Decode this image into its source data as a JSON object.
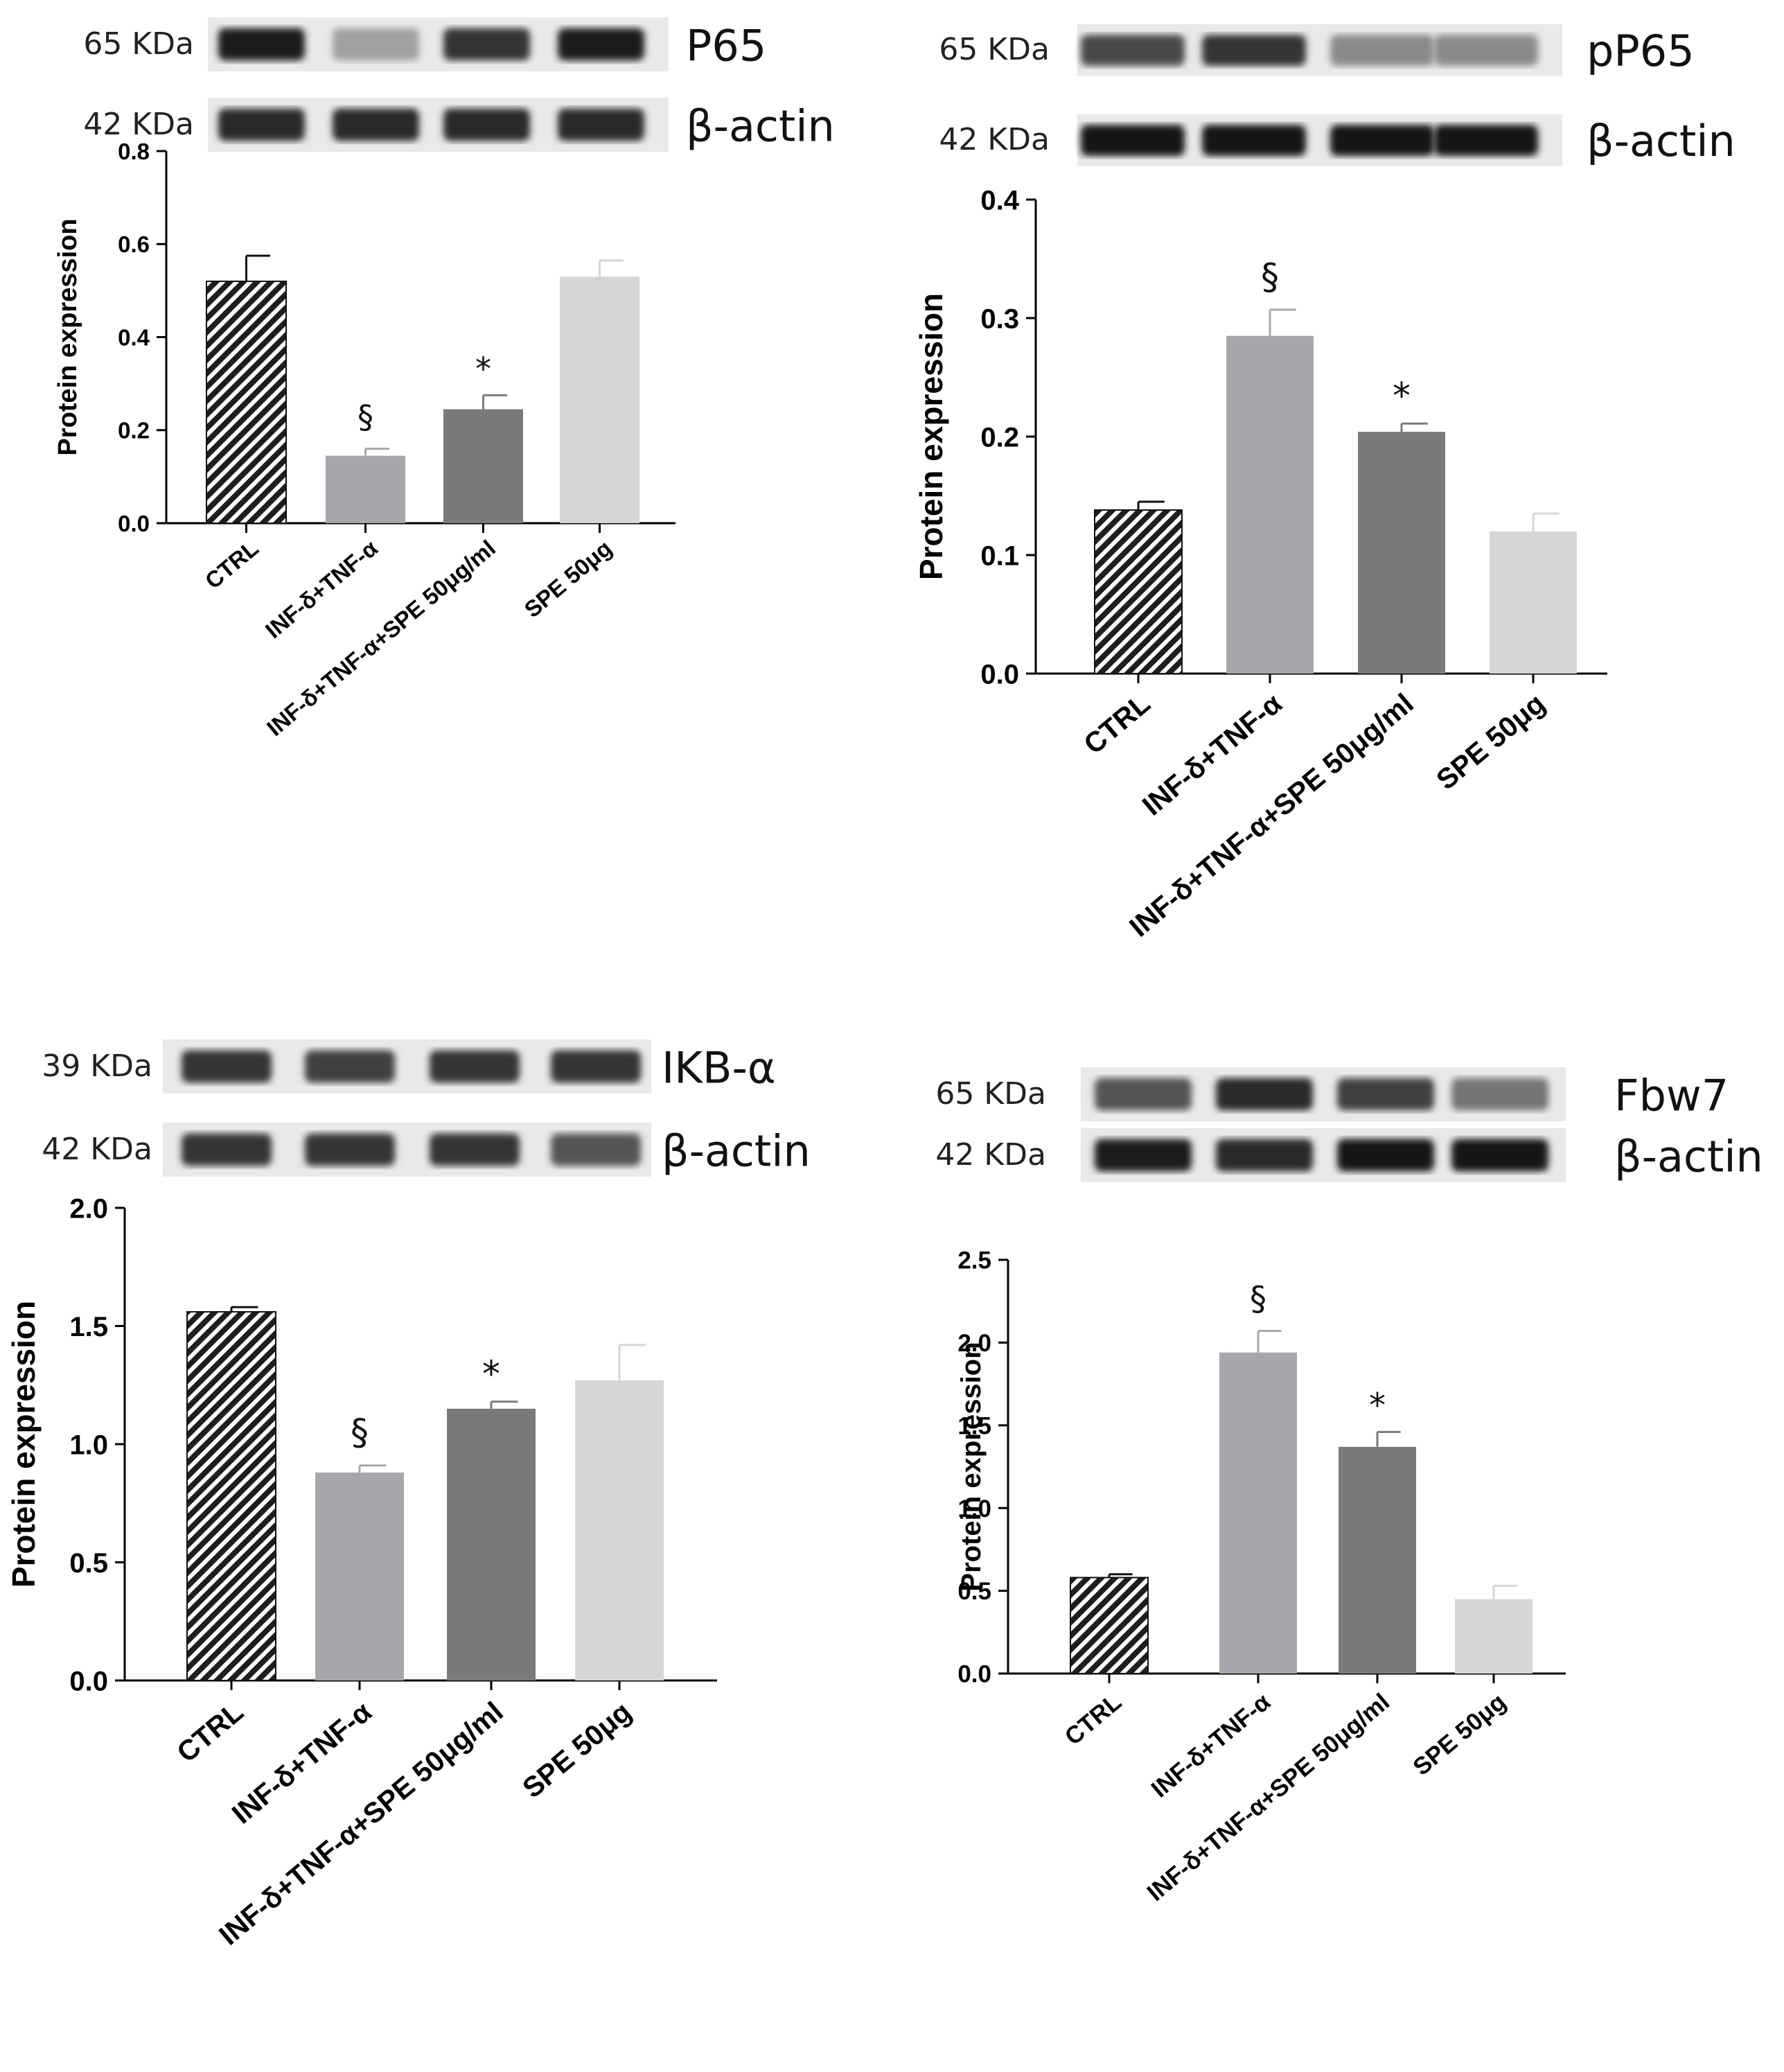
{
  "chart_data": [
    {
      "type": "bar",
      "panel": "top-left",
      "ylabel": "Protein expression",
      "ylim": [
        0,
        0.8
      ],
      "yticks": [
        "0.0",
        "0.2",
        "0.4",
        "0.6",
        "0.8"
      ],
      "categories": [
        "CTRL",
        "INF-δ+TNF-α",
        "INF-δ+TNF-α+SPE 50μg/ml",
        "SPE 50μg"
      ],
      "values": [
        0.52,
        0.145,
        0.245,
        0.53
      ],
      "errors": [
        0.055,
        0.015,
        0.03,
        0.035
      ],
      "annotations": [
        "",
        "§",
        "*",
        ""
      ],
      "blot": {
        "rows": [
          {
            "kda": "65 KDa",
            "name": "P65",
            "intensity": [
              0.95,
              0.35,
              0.85,
              0.95
            ]
          },
          {
            "kda": "42 KDa",
            "name": "β-actin",
            "intensity": [
              0.9,
              0.9,
              0.9,
              0.9
            ]
          }
        ]
      }
    },
    {
      "type": "bar",
      "panel": "top-right",
      "ylabel": "Protein expression",
      "ylim": [
        0,
        0.4
      ],
      "yticks": [
        "0.0",
        "0.1",
        "0.2",
        "0.3",
        "0.4"
      ],
      "categories": [
        "CTRL",
        "INF-δ+TNF-α",
        "INF-δ+TNF-α+SPE 50μg/ml",
        "SPE 50μg"
      ],
      "values": [
        0.138,
        0.285,
        0.204,
        0.12
      ],
      "errors": [
        0.007,
        0.022,
        0.007,
        0.015
      ],
      "annotations": [
        "",
        "§",
        "*",
        ""
      ],
      "blot": {
        "rows": [
          {
            "kda": "65 KDa",
            "name": "pP65",
            "intensity": [
              0.75,
              0.85,
              0.45,
              0.45
            ]
          },
          {
            "kda": "42 KDa",
            "name": "β-actin",
            "intensity": [
              1.0,
              1.0,
              1.0,
              1.0
            ]
          }
        ]
      }
    },
    {
      "type": "bar",
      "panel": "bottom-left",
      "ylabel": "Protein expression",
      "ylim": [
        0,
        2.0
      ],
      "yticks": [
        "0.0",
        "0.5",
        "1.0",
        "1.5",
        "2.0"
      ],
      "categories": [
        "CTRL",
        "INF-δ+TNF-α",
        "INF-δ+TNF-α+SPE 50μg/ml",
        "SPE 50μg"
      ],
      "values": [
        1.56,
        0.88,
        1.15,
        1.27
      ],
      "errors": [
        0.02,
        0.03,
        0.03,
        0.15
      ],
      "annotations": [
        "",
        "§",
        "*",
        ""
      ],
      "blot": {
        "rows": [
          {
            "kda": "39 KDa",
            "name": "IKB-α",
            "intensity": [
              0.85,
              0.8,
              0.85,
              0.85
            ]
          },
          {
            "kda": "42 KDa",
            "name": "β-actin",
            "intensity": [
              0.85,
              0.85,
              0.85,
              0.7
            ]
          }
        ]
      }
    },
    {
      "type": "bar",
      "panel": "bottom-right",
      "ylabel": "Protein expression",
      "ylim": [
        0,
        2.5
      ],
      "yticks": [
        "0.0",
        "0.5",
        "1.0",
        "1.5",
        "2.0",
        "2.5"
      ],
      "categories": [
        "CTRL",
        "INF-δ+TNF-α",
        "INF-δ+TNF-α+SPE 50μg/ml",
        "SPE 50μg"
      ],
      "values": [
        0.58,
        1.94,
        1.37,
        0.45
      ],
      "errors": [
        0.02,
        0.13,
        0.09,
        0.08
      ],
      "annotations": [
        "",
        "§",
        "*",
        ""
      ],
      "blot": {
        "rows": [
          {
            "kda": "65 KDa",
            "name": "Fbw7",
            "intensity": [
              0.7,
              0.9,
              0.8,
              0.55
            ]
          },
          {
            "kda": "42 KDa",
            "name": "β-actin",
            "intensity": [
              0.95,
              0.9,
              1.0,
              1.0
            ]
          }
        ]
      }
    }
  ],
  "bar_colors": [
    "#2a2a2a",
    "#a6a6ad",
    "#7a7a7a",
    "#d6d6d6"
  ]
}
